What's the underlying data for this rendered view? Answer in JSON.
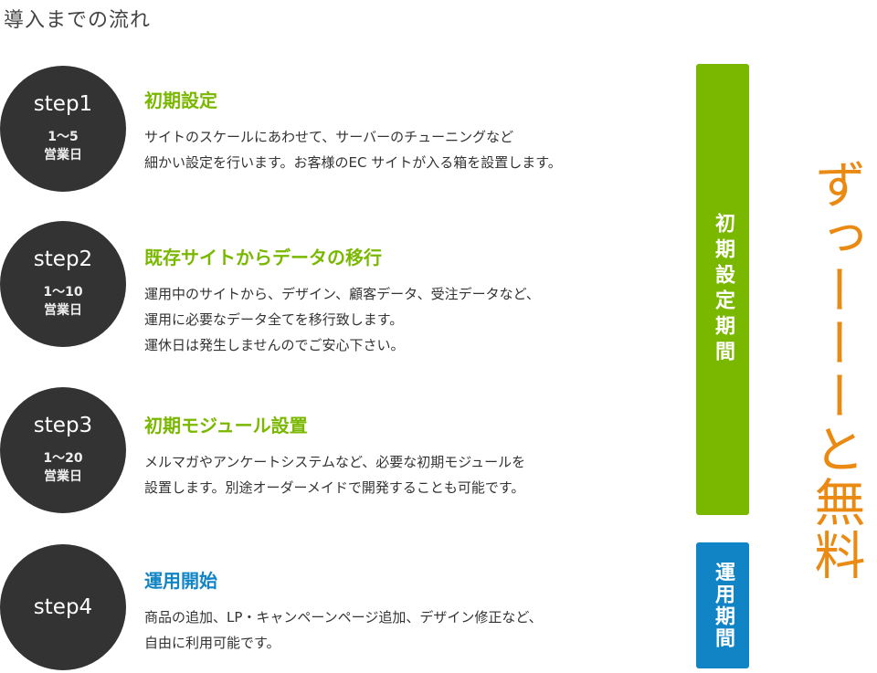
{
  "page": {
    "title": "導入までの流れ"
  },
  "steps": [
    {
      "label": "step1",
      "days": "1〜5",
      "days_unit": "営業日",
      "heading": "初期設定",
      "lines": [
        "サイトのスケールにあわせて、サーバーのチューニングなど",
        "細かい設定を行います。お客様のEC サイトが入る箱を設置します。"
      ]
    },
    {
      "label": "step2",
      "days": "1〜10",
      "days_unit": "営業日",
      "heading": "既存サイトからデータの移行",
      "lines": [
        "運用中のサイトから、デザイン、顧客データ、受注データなど、",
        "運用に必要なデータ全てを移行致します。",
        "運休日は発生しませんのでご安心下さい。"
      ]
    },
    {
      "label": "step3",
      "days": "1〜20",
      "days_unit": "営業日",
      "heading": "初期モジュール設置",
      "lines": [
        "メルマガやアンケートシステムなど、必要な初期モジュールを",
        "設置します。別途オーダーメイドで開発することも可能です。"
      ]
    },
    {
      "label": "step4",
      "heading": "運用開始",
      "lines": [
        "商品の追加、LP・キャンペーンページ追加、デザイン修正など、",
        "自由に利用可能です。"
      ]
    }
  ],
  "periods": {
    "initial": "初期設定期間",
    "operation": "運用期間"
  },
  "free_text": "ずっーーーと無料",
  "colors": {
    "circle": "#333333",
    "green": "#7ab800",
    "blue": "#1184c6",
    "orange": "#ea8a12"
  }
}
